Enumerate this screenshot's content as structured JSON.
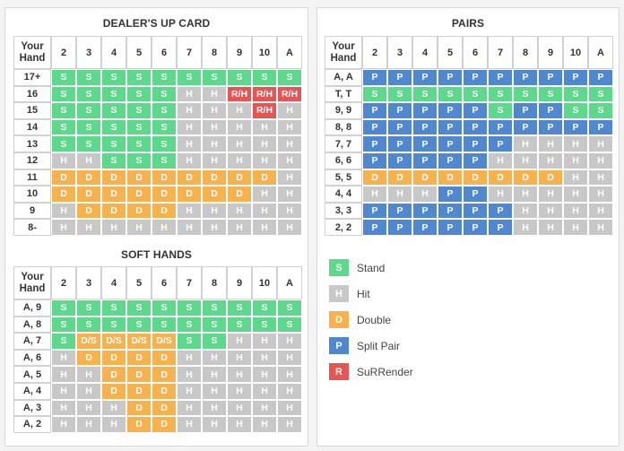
{
  "hard": {
    "title": "DEALER'S UP CARD",
    "corner": [
      "Your",
      "Hand"
    ],
    "columns": [
      "2",
      "3",
      "4",
      "5",
      "6",
      "7",
      "8",
      "9",
      "10",
      "A"
    ],
    "rows": [
      {
        "hand": "17+",
        "cells": [
          "S",
          "S",
          "S",
          "S",
          "S",
          "S",
          "S",
          "S",
          "S",
          "S"
        ]
      },
      {
        "hand": "16",
        "cells": [
          "S",
          "S",
          "S",
          "S",
          "S",
          "H",
          "H",
          "R/H",
          "R/H",
          "R/H"
        ]
      },
      {
        "hand": "15",
        "cells": [
          "S",
          "S",
          "S",
          "S",
          "S",
          "H",
          "H",
          "H",
          "R/H",
          "H"
        ]
      },
      {
        "hand": "14",
        "cells": [
          "S",
          "S",
          "S",
          "S",
          "S",
          "H",
          "H",
          "H",
          "H",
          "H"
        ]
      },
      {
        "hand": "13",
        "cells": [
          "S",
          "S",
          "S",
          "S",
          "S",
          "H",
          "H",
          "H",
          "H",
          "H"
        ]
      },
      {
        "hand": "12",
        "cells": [
          "H",
          "H",
          "S",
          "S",
          "S",
          "H",
          "H",
          "H",
          "H",
          "H"
        ]
      },
      {
        "hand": "11",
        "cells": [
          "D",
          "D",
          "D",
          "D",
          "D",
          "D",
          "D",
          "D",
          "D",
          "H"
        ]
      },
      {
        "hand": "10",
        "cells": [
          "D",
          "D",
          "D",
          "D",
          "D",
          "D",
          "D",
          "D",
          "H",
          "H"
        ]
      },
      {
        "hand": "9",
        "cells": [
          "H",
          "D",
          "D",
          "D",
          "D",
          "H",
          "H",
          "H",
          "H",
          "H"
        ]
      },
      {
        "hand": "8-",
        "cells": [
          "H",
          "H",
          "H",
          "H",
          "H",
          "H",
          "H",
          "H",
          "H",
          "H"
        ]
      }
    ]
  },
  "soft": {
    "title": "SOFT HANDS",
    "corner": [
      "Your",
      "Hand"
    ],
    "columns": [
      "2",
      "3",
      "4",
      "5",
      "6",
      "7",
      "8",
      "9",
      "10",
      "A"
    ],
    "rows": [
      {
        "hand": "A, 9",
        "cells": [
          "S",
          "S",
          "S",
          "S",
          "S",
          "S",
          "S",
          "S",
          "S",
          "S"
        ]
      },
      {
        "hand": "A, 8",
        "cells": [
          "S",
          "S",
          "S",
          "S",
          "S",
          "S",
          "S",
          "S",
          "S",
          "S"
        ]
      },
      {
        "hand": "A, 7",
        "cells": [
          "S",
          "D/S",
          "D/S",
          "D/S",
          "D/S",
          "S",
          "S",
          "H",
          "H",
          "H"
        ]
      },
      {
        "hand": "A, 6",
        "cells": [
          "H",
          "D",
          "D",
          "D",
          "D",
          "H",
          "H",
          "H",
          "H",
          "H"
        ]
      },
      {
        "hand": "A, 5",
        "cells": [
          "H",
          "H",
          "D",
          "D",
          "D",
          "H",
          "H",
          "H",
          "H",
          "H"
        ]
      },
      {
        "hand": "A, 4",
        "cells": [
          "H",
          "H",
          "D",
          "D",
          "D",
          "H",
          "H",
          "H",
          "H",
          "H"
        ]
      },
      {
        "hand": "A, 3",
        "cells": [
          "H",
          "H",
          "H",
          "D",
          "D",
          "H",
          "H",
          "H",
          "H",
          "H"
        ]
      },
      {
        "hand": "A, 2",
        "cells": [
          "H",
          "H",
          "H",
          "D",
          "D",
          "H",
          "H",
          "H",
          "H",
          "H"
        ]
      }
    ]
  },
  "pairs": {
    "title": "PAIRS",
    "corner": [
      "Your",
      "Hand"
    ],
    "columns": [
      "2",
      "3",
      "4",
      "5",
      "6",
      "7",
      "8",
      "9",
      "10",
      "A"
    ],
    "rows": [
      {
        "hand": "A, A",
        "cells": [
          "P",
          "P",
          "P",
          "P",
          "P",
          "P",
          "P",
          "P",
          "P",
          "P"
        ]
      },
      {
        "hand": "T, T",
        "cells": [
          "S",
          "S",
          "S",
          "S",
          "S",
          "S",
          "S",
          "S",
          "S",
          "S"
        ]
      },
      {
        "hand": "9, 9",
        "cells": [
          "P",
          "P",
          "P",
          "P",
          "P",
          "S",
          "P",
          "P",
          "S",
          "S"
        ]
      },
      {
        "hand": "8, 8",
        "cells": [
          "P",
          "P",
          "P",
          "P",
          "P",
          "P",
          "P",
          "P",
          "P",
          "P"
        ]
      },
      {
        "hand": "7, 7",
        "cells": [
          "P",
          "P",
          "P",
          "P",
          "P",
          "P",
          "H",
          "H",
          "H",
          "H"
        ]
      },
      {
        "hand": "6, 6",
        "cells": [
          "P",
          "P",
          "P",
          "P",
          "P",
          "H",
          "H",
          "H",
          "H",
          "H"
        ]
      },
      {
        "hand": "5, 5",
        "cells": [
          "D",
          "D",
          "D",
          "D",
          "D",
          "D",
          "D",
          "D",
          "H",
          "H"
        ]
      },
      {
        "hand": "4, 4",
        "cells": [
          "H",
          "H",
          "H",
          "P",
          "P",
          "H",
          "H",
          "H",
          "H",
          "H"
        ]
      },
      {
        "hand": "3, 3",
        "cells": [
          "P",
          "P",
          "P",
          "P",
          "P",
          "P",
          "H",
          "H",
          "H",
          "H"
        ]
      },
      {
        "hand": "2, 2",
        "cells": [
          "P",
          "P",
          "P",
          "P",
          "P",
          "P",
          "H",
          "H",
          "H",
          "H"
        ]
      }
    ]
  },
  "legend": [
    {
      "code": "S",
      "label": "Stand",
      "color": "#5cd98a"
    },
    {
      "code": "H",
      "label": "Hit",
      "color": "#c8c8c8"
    },
    {
      "code": "D",
      "label": "Double",
      "color": "#f8b24d"
    },
    {
      "code": "P",
      "label": "Split Pair",
      "color": "#4f88d0"
    },
    {
      "code": "R",
      "label": "SuRRender",
      "color": "#e85454"
    }
  ],
  "colors": {
    "S": "#5cd98a",
    "H": "#c8c8c8",
    "D": "#f8b24d",
    "P": "#4f88d0",
    "R": "#e85454",
    "D/S": "#f8b24d",
    "R/H": "#e85454"
  }
}
